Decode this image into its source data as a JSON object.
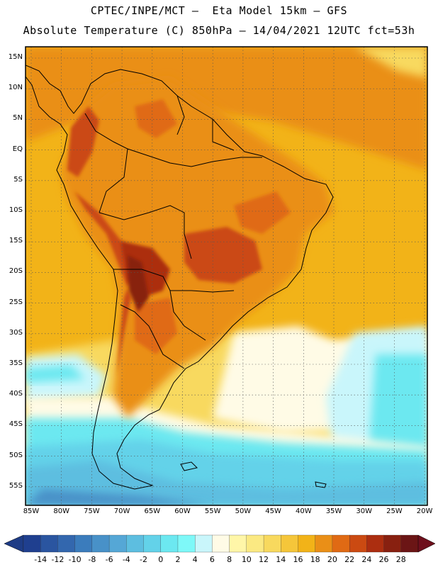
{
  "header": {
    "title_line1": "CPTEC/INPE/MCT –  Eta Model 15km – GFS",
    "title_line2": "Absolute Temperature (C) 850hPa – 14/04/2021 12UTC fct=53h"
  },
  "map": {
    "lat_labels": [
      "15N",
      "10N",
      "5N",
      "EQ",
      "5S",
      "10S",
      "15S",
      "20S",
      "25S",
      "30S",
      "35S",
      "40S",
      "45S",
      "50S",
      "55S"
    ],
    "lon_labels": [
      "85W",
      "80W",
      "75W",
      "70W",
      "65W",
      "60W",
      "55W",
      "50W",
      "45W",
      "40W",
      "35W",
      "30W",
      "25W",
      "20W"
    ],
    "gridlines": true
  },
  "colorbar": {
    "tick_labels": [
      "-14",
      "-12",
      "-10",
      "-8",
      "-6",
      "-4",
      "-2",
      "0",
      "2",
      "4",
      "6",
      "8",
      "10",
      "12",
      "14",
      "16",
      "18",
      "20",
      "22",
      "24",
      "26",
      "28"
    ],
    "colors": [
      "#1f3f8f",
      "#2a55a0",
      "#3367ae",
      "#3b7cbc",
      "#4891c8",
      "#55a7d6",
      "#5dbee0",
      "#63d2e9",
      "#6ce8f0",
      "#7ef8f8",
      "#c9f6fb",
      "#fffbe6",
      "#fff6a8",
      "#fbe982",
      "#f8d95e",
      "#f5c63a",
      "#f2b318",
      "#ea8f17",
      "#e06a14",
      "#cb4a12",
      "#ac2e10",
      "#882010",
      "#6b1515"
    ],
    "underflow_color": "#1e3c86",
    "overflow_color": "#6e0f1c"
  }
}
